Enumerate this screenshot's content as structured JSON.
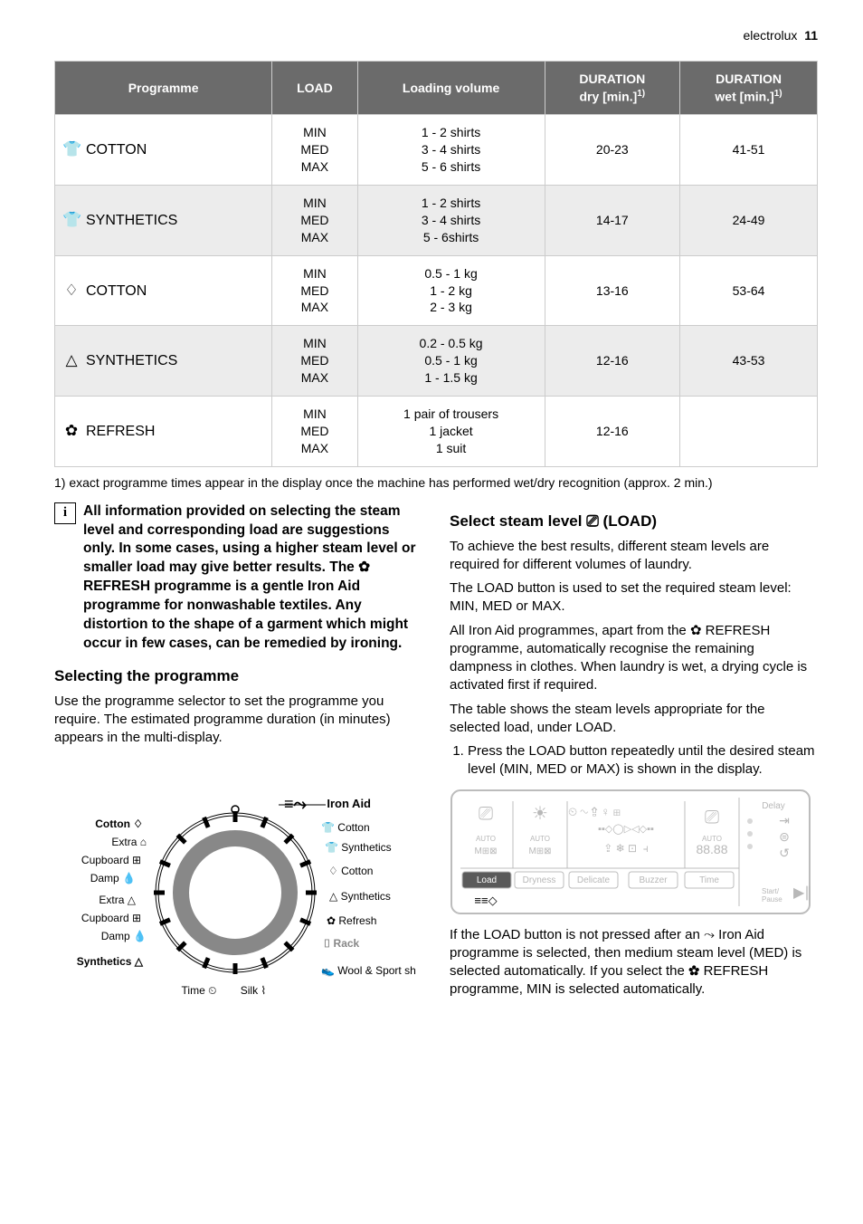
{
  "header": {
    "brand": "electrolux",
    "page_num": "11"
  },
  "table": {
    "head": {
      "programme": "Programme",
      "load": "LOAD",
      "loading_vol": "Loading volume",
      "dur_dry": "DURATION",
      "dur_dry_sub": "dry [min.]",
      "dur_wet": "DURATION",
      "dur_wet_sub": "wet [min.]",
      "sup": "1)"
    },
    "rows": [
      {
        "icon": "👕",
        "name": "COTTON",
        "load": "MIN\nMED\nMAX",
        "vol": "1 - 2 shirts\n3 - 4 shirts\n5 - 6 shirts",
        "dry": "20-23",
        "wet": "41-51"
      },
      {
        "icon": "👕",
        "name": "SYNTHETICS",
        "load": "MIN\nMED\nMAX",
        "vol": "1 - 2 shirts\n3 - 4 shirts\n5 - 6shirts",
        "dry": "14-17",
        "wet": "24-49"
      },
      {
        "icon": "♢",
        "name": "COTTON",
        "load": "MIN\nMED\nMAX",
        "vol": "0.5 - 1 kg\n1 - 2 kg\n2 - 3 kg",
        "dry": "13-16",
        "wet": "53-64"
      },
      {
        "icon": "△",
        "name": "SYNTHETICS",
        "load": "MIN\nMED\nMAX",
        "vol": "0.2 - 0.5 kg\n0.5 - 1 kg\n1 - 1.5 kg",
        "dry": "12-16",
        "wet": "43-53"
      },
      {
        "icon": "✿",
        "name": "REFRESH",
        "load": "MIN\nMED\nMAX",
        "vol": "1 pair of trousers\n1 jacket\n1 suit",
        "dry": "12-16",
        "wet": ""
      }
    ]
  },
  "footnote": "1) exact programme times appear in the display once the machine has performed wet/dry recognition (approx. 2 min.)",
  "left": {
    "info": "All information provided on selecting the steam level and corresponding load are suggestions only. In some cases, using a higher steam level or smaller load may give better results. The ✿ REFRESH programme is a gentle Iron Aid programme for nonwashable textiles. Any distortion to the shape of a garment which might occur in few cases, can be remedied by ironing.",
    "selecting_h": "Selecting the programme",
    "selecting_p": "Use the programme selector to set the programme you require. The estimated programme duration (in minutes) appears in the multi-display.",
    "dial": {
      "left_labels": [
        "Cotton",
        "Extra",
        "Cupboard",
        "Damp",
        "Extra",
        "Cupboard",
        "Damp",
        "Synthetics"
      ],
      "left_icons": [
        "♢",
        "⌂",
        "⊞",
        "💧",
        "△",
        "⊞",
        "💧",
        "△"
      ],
      "right_top": "Iron Aid",
      "right_labels": [
        "Cotton",
        "Synthetics",
        "Cotton",
        "Synthetics",
        "Refresh",
        "Rack",
        "Wool & Sport shoes"
      ],
      "right_icons": [
        "👕",
        "👕",
        "♢",
        "△",
        "✿",
        "⌷",
        "👟"
      ],
      "bottom": [
        "Time",
        "Silk"
      ],
      "bottom_icons": [
        "⏲",
        "⌇"
      ]
    }
  },
  "right": {
    "heading": "Select steam level ⎚ (LOAD)",
    "p1": "To achieve the best results, different steam levels are required for different volumes of laundry.",
    "p2": "The LOAD button is used to set the required steam level: MIN, MED or MAX.",
    "p3": "All Iron Aid programmes, apart from the ✿ REFRESH programme, automatically recognise the remaining dampness in clothes. When laundry is wet, a drying cycle is activated first if required.",
    "p4": "The table shows the steam levels appropriate for the selected load, under LOAD.",
    "step1": "Press the LOAD button repeatedly until the desired steam level (MIN, MED or MAX) is shown in the display.",
    "panel": {
      "buttons": [
        "Load",
        "Dryness",
        "Delicate",
        "Buzzer",
        "Time"
      ],
      "delay": "Delay",
      "start": "Start/\nPause",
      "auto": "AUTO",
      "display": "88.88",
      "bottom_icon": "≡≡◇"
    },
    "p5": "If the LOAD button is not pressed after an ⤳ Iron Aid programme is selected, then medium steam level (MED) is selected automatically. If you select the ✿ REFRESH programme, MIN is selected automatically."
  },
  "colors": {
    "th_bg": "#6b6b6b",
    "row_alt": "#ececec",
    "panel_border": "#bcbcbc",
    "panel_inactive": "#b8b8b8"
  }
}
